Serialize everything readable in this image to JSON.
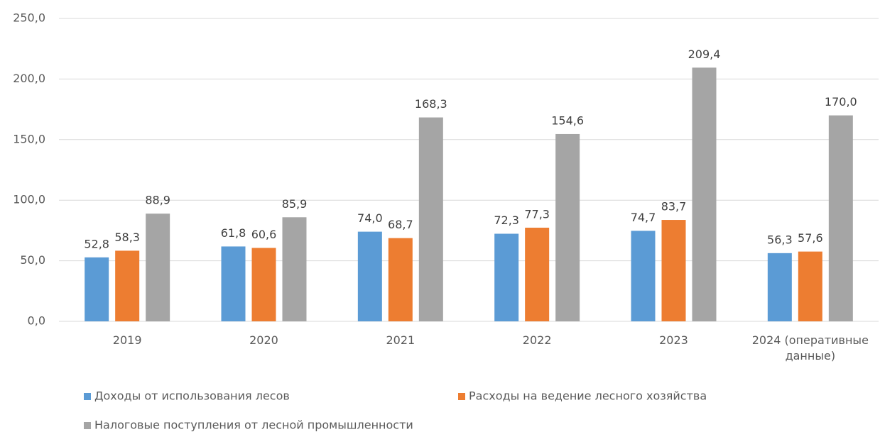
{
  "chart_data": {
    "type": "bar",
    "categories": [
      "2019",
      "2020",
      "2021",
      "2022",
      "2023",
      "2024 (оперативные данные)"
    ],
    "series": [
      {
        "name": "Доходы от использования лесов",
        "color": "#5b9bd5",
        "values": [
          52.8,
          61.8,
          74.0,
          72.3,
          74.7,
          56.3
        ],
        "value_labels": [
          "52,8",
          "61,8",
          "74,0",
          "72,3",
          "74,7",
          "56,3"
        ]
      },
      {
        "name": "Расходы на ведение лесного хозяйства",
        "color": "#ed7d31",
        "values": [
          58.3,
          60.6,
          68.7,
          77.3,
          83.7,
          57.6
        ],
        "value_labels": [
          "58,3",
          "60,6",
          "68,7",
          "77,3",
          "83,7",
          "57,6"
        ]
      },
      {
        "name": "Налоговые поступления от лесной промышленности",
        "color": "#a5a5a5",
        "values": [
          88.9,
          85.9,
          168.3,
          154.6,
          209.4,
          170.0
        ],
        "value_labels": [
          "88,9",
          "85,9",
          "168,3",
          "154,6",
          "209,4",
          "170,0"
        ]
      }
    ],
    "ylim": [
      0,
      250
    ],
    "yticks": [
      {
        "value": 0,
        "label": "0,0"
      },
      {
        "value": 50,
        "label": "50,0"
      },
      {
        "value": 100,
        "label": "100,0"
      },
      {
        "value": 150,
        "label": "150,0"
      },
      {
        "value": 200,
        "label": "200,0"
      },
      {
        "value": 250,
        "label": "250,0"
      }
    ],
    "grid": true,
    "legend": "bottom"
  }
}
